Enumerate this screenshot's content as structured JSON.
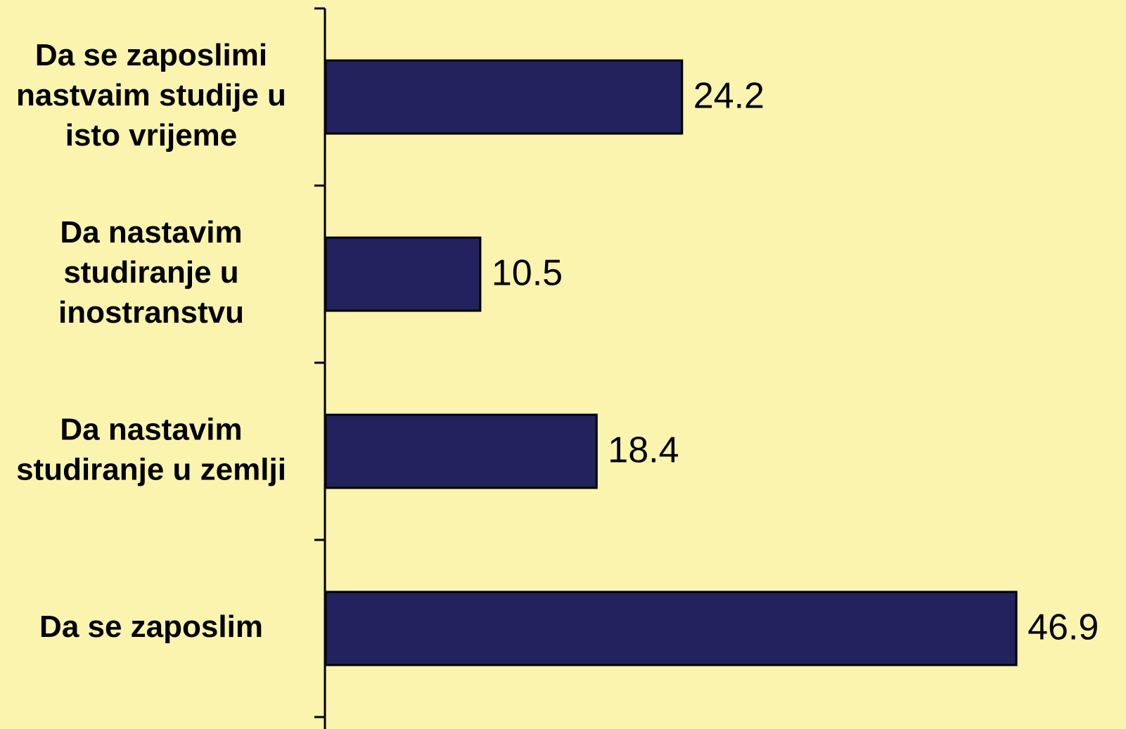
{
  "chart_data": {
    "type": "hbar",
    "categories": [
      "Da se zaposlimi nastvaim studije u isto vrijeme",
      "Da nastavim studiranje u inostranstvu",
      "Da nastavim studiranje u zemlji",
      "Da se zaposlim"
    ],
    "values": [
      24.2,
      10.5,
      18.4,
      46.9
    ],
    "color": "#22225f",
    "xlim": [
      0,
      50
    ]
  }
}
